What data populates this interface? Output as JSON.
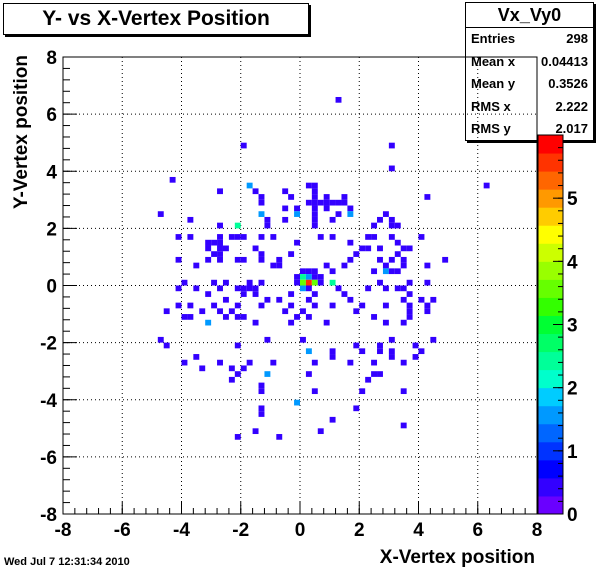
{
  "title": "Y- vs X-Vertex Position",
  "stats": {
    "name": "Vx_Vy0",
    "rows": [
      {
        "label": "Entries",
        "value": "298"
      },
      {
        "label": "Mean x",
        "value": "0.04413"
      },
      {
        "label": "Mean y",
        "value": "0.3526"
      },
      {
        "label": "RMS x",
        "value": "2.222"
      },
      {
        "label": "RMS y",
        "value": "2.017"
      }
    ]
  },
  "timestamp": "Wed Jul  7 12:31:34 2010",
  "colors": {
    "palette": [
      "#6a00ff",
      "#3300ff",
      "#0000ff",
      "#0033ff",
      "#0066ff",
      "#0099ff",
      "#00ccff",
      "#00ffcc",
      "#00ff99",
      "#00ff66",
      "#00ff33",
      "#33ff00",
      "#66ff00",
      "#99ff00",
      "#ccff00",
      "#ffff00",
      "#ffcc00",
      "#ff9900",
      "#ff6600",
      "#ff3300",
      "#ff0000"
    ]
  },
  "chart_data": {
    "type": "heatmap",
    "title": "Y- vs X-Vertex Position",
    "xlabel": "X-Vertex position",
    "ylabel": "Y-Vertex position",
    "xlim": [
      -8,
      8
    ],
    "ylim": [
      -8,
      8
    ],
    "zlim": [
      0,
      6
    ],
    "bin_size": 0.2,
    "grid": true,
    "legend": "top-right",
    "xticks": [
      "-8",
      "-6",
      "-4",
      "-2",
      "0",
      "2",
      "4",
      "6",
      "8"
    ],
    "yticks": [
      "-8",
      "-6",
      "-4",
      "-2",
      "0",
      "2",
      "4",
      "6",
      "8"
    ],
    "zticks": [
      "0",
      "1",
      "2",
      "3",
      "4",
      "5"
    ],
    "points": [
      [
        1.3,
        6.5,
        1
      ],
      [
        -1.9,
        4.9,
        1
      ],
      [
        3.1,
        4.9,
        1
      ],
      [
        3.1,
        4.1,
        1
      ],
      [
        -4.3,
        3.7,
        1
      ],
      [
        6.3,
        3.5,
        1
      ],
      [
        -1.7,
        3.5,
        2
      ],
      [
        -2.7,
        3.3,
        1
      ],
      [
        -1.5,
        3.3,
        1
      ],
      [
        0.5,
        3.3,
        1
      ],
      [
        -0.5,
        3.3,
        1
      ],
      [
        0.3,
        3.5,
        1
      ],
      [
        0.5,
        3.5,
        1
      ],
      [
        -1.3,
        3.1,
        1
      ],
      [
        0.9,
        3.1,
        1
      ],
      [
        1.5,
        3.1,
        1
      ],
      [
        4.3,
        3.1,
        1
      ],
      [
        -0.3,
        3.1,
        1
      ],
      [
        0.5,
        3.1,
        1
      ],
      [
        -1.3,
        2.9,
        1
      ],
      [
        0.3,
        2.9,
        1
      ],
      [
        0.5,
        2.9,
        1
      ],
      [
        0.7,
        2.9,
        1
      ],
      [
        0.9,
        2.9,
        1
      ],
      [
        1.1,
        2.9,
        1
      ],
      [
        1.3,
        2.9,
        1
      ],
      [
        1.5,
        2.9,
        1
      ],
      [
        -0.5,
        2.7,
        1
      ],
      [
        -0.1,
        2.7,
        1
      ],
      [
        0.5,
        2.7,
        1
      ],
      [
        0.9,
        2.7,
        1
      ],
      [
        1.7,
        2.7,
        1
      ],
      [
        -4.7,
        2.5,
        1
      ],
      [
        -1.3,
        2.5,
        2
      ],
      [
        -0.1,
        2.5,
        2
      ],
      [
        0.5,
        2.5,
        1
      ],
      [
        1.3,
        2.5,
        1
      ],
      [
        1.7,
        2.5,
        2
      ],
      [
        2.9,
        2.5,
        1
      ],
      [
        -3.7,
        2.3,
        1
      ],
      [
        -1.1,
        2.3,
        1
      ],
      [
        -0.5,
        2.3,
        1
      ],
      [
        0.5,
        2.3,
        1
      ],
      [
        1.1,
        2.3,
        1
      ],
      [
        2.7,
        2.3,
        1
      ],
      [
        3.1,
        2.3,
        1
      ],
      [
        -2.7,
        2.1,
        1
      ],
      [
        -2.1,
        2.1,
        3
      ],
      [
        -1.1,
        2.1,
        1
      ],
      [
        0.5,
        2.1,
        1
      ],
      [
        2.5,
        2.1,
        1
      ],
      [
        3.1,
        2.1,
        1
      ],
      [
        3.3,
        2.1,
        1
      ],
      [
        -4.1,
        1.7,
        1
      ],
      [
        -3.7,
        1.7,
        1
      ],
      [
        -2.7,
        1.7,
        1
      ],
      [
        -2.3,
        1.7,
        1
      ],
      [
        -2.1,
        1.7,
        1
      ],
      [
        -1.9,
        1.7,
        1
      ],
      [
        -1.3,
        1.7,
        1
      ],
      [
        -0.9,
        1.7,
        1
      ],
      [
        0.7,
        1.7,
        1
      ],
      [
        1.1,
        1.7,
        1
      ],
      [
        2.3,
        1.7,
        1
      ],
      [
        2.5,
        1.7,
        1
      ],
      [
        3.1,
        1.7,
        1
      ],
      [
        4.1,
        1.7,
        1
      ],
      [
        -3.1,
        1.5,
        1
      ],
      [
        -2.9,
        1.5,
        1
      ],
      [
        -2.7,
        1.5,
        1
      ],
      [
        -0.1,
        1.5,
        1
      ],
      [
        1.7,
        1.5,
        1
      ],
      [
        3.3,
        1.5,
        1
      ],
      [
        -2.7,
        1.3,
        1
      ],
      [
        -2.5,
        1.3,
        1
      ],
      [
        -3.1,
        1.3,
        1
      ],
      [
        -1.5,
        1.3,
        1
      ],
      [
        2.1,
        1.3,
        1
      ],
      [
        2.3,
        1.3,
        1
      ],
      [
        2.7,
        1.3,
        1
      ],
      [
        3.5,
        1.3,
        1
      ],
      [
        3.7,
        1.3,
        1
      ],
      [
        -2.9,
        1.1,
        1
      ],
      [
        -2.7,
        1.1,
        1
      ],
      [
        -1.3,
        1.1,
        1
      ],
      [
        -0.3,
        1.1,
        1
      ],
      [
        1.9,
        1.1,
        1
      ],
      [
        3.3,
        1.1,
        1
      ],
      [
        -4.1,
        0.9,
        1
      ],
      [
        -3.1,
        0.9,
        1
      ],
      [
        -2.7,
        0.9,
        1
      ],
      [
        -2.1,
        0.9,
        1
      ],
      [
        -1.9,
        0.9,
        1
      ],
      [
        -1.3,
        0.9,
        1
      ],
      [
        -0.7,
        0.9,
        1
      ],
      [
        1.7,
        0.9,
        1
      ],
      [
        2.7,
        0.9,
        1
      ],
      [
        3.1,
        0.9,
        1
      ],
      [
        3.5,
        0.9,
        1
      ],
      [
        4.9,
        0.9,
        1
      ],
      [
        -3.5,
        0.7,
        1
      ],
      [
        -0.9,
        0.7,
        1
      ],
      [
        -0.7,
        0.7,
        1
      ],
      [
        0.9,
        0.7,
        1
      ],
      [
        1.5,
        0.7,
        1
      ],
      [
        2.9,
        0.7,
        1
      ],
      [
        3.5,
        0.7,
        1
      ],
      [
        4.3,
        0.7,
        1
      ],
      [
        0.1,
        0.5,
        1
      ],
      [
        0.3,
        0.5,
        1
      ],
      [
        0.5,
        0.5,
        1
      ],
      [
        1.1,
        0.5,
        1
      ],
      [
        2.5,
        0.5,
        1
      ],
      [
        2.9,
        0.5,
        2
      ],
      [
        3.1,
        0.5,
        1
      ],
      [
        3.3,
        0.5,
        1
      ],
      [
        -0.1,
        0.3,
        1
      ],
      [
        0.1,
        0.3,
        3
      ],
      [
        0.3,
        0.3,
        2
      ],
      [
        0.5,
        0.3,
        1
      ],
      [
        0.7,
        0.3,
        1
      ],
      [
        -3.9,
        0.1,
        1
      ],
      [
        -2.9,
        0.1,
        1
      ],
      [
        -2.5,
        0.1,
        1
      ],
      [
        -1.7,
        0.1,
        1
      ],
      [
        -0.1,
        0.1,
        1
      ],
      [
        0.1,
        0.1,
        4
      ],
      [
        0.3,
        0.1,
        6
      ],
      [
        0.5,
        0.1,
        4
      ],
      [
        0.7,
        0.1,
        1
      ],
      [
        1.1,
        0.1,
        3
      ],
      [
        2.7,
        0.1,
        1
      ],
      [
        3.7,
        0.1,
        1
      ],
      [
        4.3,
        0.1,
        1
      ],
      [
        -1.3,
        0.1,
        1
      ],
      [
        -4.1,
        -0.1,
        1
      ],
      [
        -3.5,
        -0.1,
        1
      ],
      [
        -2.7,
        -0.1,
        1
      ],
      [
        -2.1,
        -0.1,
        1
      ],
      [
        -1.9,
        -0.1,
        1
      ],
      [
        -1.7,
        -0.1,
        1
      ],
      [
        -1.5,
        -0.1,
        1
      ],
      [
        0.1,
        -0.1,
        2
      ],
      [
        0.3,
        -0.1,
        1
      ],
      [
        1.3,
        -0.1,
        1
      ],
      [
        2.3,
        -0.1,
        1
      ],
      [
        2.9,
        -0.1,
        1
      ],
      [
        3.3,
        -0.1,
        1
      ],
      [
        3.5,
        -0.1,
        1
      ],
      [
        -3.1,
        -0.3,
        1
      ],
      [
        -1.9,
        -0.3,
        1
      ],
      [
        -1.5,
        -0.3,
        1
      ],
      [
        -0.3,
        -0.3,
        1
      ],
      [
        0.5,
        -0.3,
        1
      ],
      [
        1.5,
        -0.3,
        1
      ],
      [
        3.7,
        -0.3,
        1
      ],
      [
        -2.5,
        -0.5,
        1
      ],
      [
        -1.1,
        -0.5,
        1
      ],
      [
        -0.7,
        -0.5,
        1
      ],
      [
        0.3,
        -0.5,
        1
      ],
      [
        1.7,
        -0.5,
        1
      ],
      [
        3.5,
        -0.5,
        1
      ],
      [
        4.1,
        -0.5,
        1
      ],
      [
        4.5,
        -0.5,
        1
      ],
      [
        -4.1,
        -0.7,
        1
      ],
      [
        -3.7,
        -0.7,
        1
      ],
      [
        -2.9,
        -0.7,
        1
      ],
      [
        -2.1,
        -0.7,
        1
      ],
      [
        -1.3,
        -0.7,
        1
      ],
      [
        -0.3,
        -0.7,
        1
      ],
      [
        0.5,
        -0.7,
        1
      ],
      [
        1.1,
        -0.7,
        1
      ],
      [
        2.1,
        -0.7,
        1
      ],
      [
        2.9,
        -0.7,
        1
      ],
      [
        3.7,
        -0.7,
        1
      ],
      [
        4.3,
        -0.7,
        1
      ],
      [
        -4.5,
        -0.9,
        1
      ],
      [
        -3.3,
        -0.9,
        1
      ],
      [
        -2.7,
        -0.9,
        1
      ],
      [
        -2.3,
        -0.9,
        1
      ],
      [
        -0.5,
        -0.9,
        1
      ],
      [
        0.1,
        -0.9,
        1
      ],
      [
        1.9,
        -0.9,
        1
      ],
      [
        3.7,
        -0.9,
        1
      ],
      [
        4.3,
        -0.9,
        1
      ],
      [
        -3.9,
        -1.1,
        1
      ],
      [
        -3.7,
        -1.1,
        1
      ],
      [
        -2.5,
        -1.1,
        1
      ],
      [
        -2.1,
        -1.1,
        1
      ],
      [
        -1.9,
        -1.1,
        1
      ],
      [
        -0.1,
        -1.1,
        1
      ],
      [
        0.3,
        -1.1,
        1
      ],
      [
        2.5,
        -1.1,
        1
      ],
      [
        3.7,
        -1.1,
        1
      ],
      [
        -3.1,
        -1.3,
        2
      ],
      [
        -1.5,
        -1.3,
        1
      ],
      [
        -0.3,
        -1.3,
        1
      ],
      [
        0.9,
        -1.3,
        1
      ],
      [
        2.9,
        -1.3,
        1
      ],
      [
        3.5,
        -1.3,
        1
      ],
      [
        -4.7,
        -1.9,
        1
      ],
      [
        -1.1,
        -1.9,
        1
      ],
      [
        0.1,
        -1.9,
        1
      ],
      [
        3.1,
        -1.9,
        1
      ],
      [
        4.5,
        -1.9,
        1
      ],
      [
        -4.5,
        -2.1,
        1
      ],
      [
        -2.1,
        -2.1,
        1
      ],
      [
        1.9,
        -2.1,
        1
      ],
      [
        2.7,
        -2.1,
        1
      ],
      [
        3.9,
        -2.1,
        1
      ],
      [
        -3.5,
        -2.5,
        1
      ],
      [
        0.3,
        -2.3,
        2
      ],
      [
        1.1,
        -2.3,
        1
      ],
      [
        2.1,
        -2.3,
        1
      ],
      [
        2.7,
        -2.3,
        1
      ],
      [
        3.1,
        -2.3,
        1
      ],
      [
        4.1,
        -2.3,
        1
      ],
      [
        -3.9,
        -2.7,
        1
      ],
      [
        -2.7,
        -2.7,
        1
      ],
      [
        -1.7,
        -2.7,
        1
      ],
      [
        -0.9,
        -2.7,
        1
      ],
      [
        1.1,
        -2.5,
        1
      ],
      [
        3.1,
        -2.5,
        1
      ],
      [
        3.9,
        -2.5,
        1
      ],
      [
        -3.3,
        -2.9,
        1
      ],
      [
        -2.3,
        -2.9,
        1
      ],
      [
        -1.9,
        -2.9,
        1
      ],
      [
        0.5,
        -2.7,
        1
      ],
      [
        1.7,
        -2.7,
        1
      ],
      [
        2.5,
        -2.7,
        1
      ],
      [
        3.5,
        -2.7,
        1
      ],
      [
        -2.1,
        -3.1,
        1
      ],
      [
        -1.1,
        -3.1,
        2
      ],
      [
        -2.3,
        -3.3,
        1
      ],
      [
        2.5,
        -3.1,
        1
      ],
      [
        2.7,
        -3.1,
        1
      ],
      [
        0.3,
        -3.1,
        1
      ],
      [
        -1.3,
        -3.5,
        1
      ],
      [
        2.3,
        -3.3,
        1
      ],
      [
        -1.3,
        -3.7,
        1
      ],
      [
        0.5,
        -3.7,
        1
      ],
      [
        2.1,
        -3.7,
        1
      ],
      [
        3.5,
        -3.7,
        1
      ],
      [
        -0.1,
        -4.1,
        2
      ],
      [
        -1.3,
        -4.3,
        1
      ],
      [
        1.9,
        -4.3,
        1
      ],
      [
        -1.3,
        -4.5,
        1
      ],
      [
        1.1,
        -4.7,
        1
      ],
      [
        3.5,
        -4.9,
        1
      ],
      [
        -1.5,
        -5.1,
        1
      ],
      [
        0.7,
        -5.1,
        1
      ],
      [
        -2.1,
        -5.3,
        1
      ],
      [
        -0.7,
        -5.3,
        1
      ]
    ]
  }
}
